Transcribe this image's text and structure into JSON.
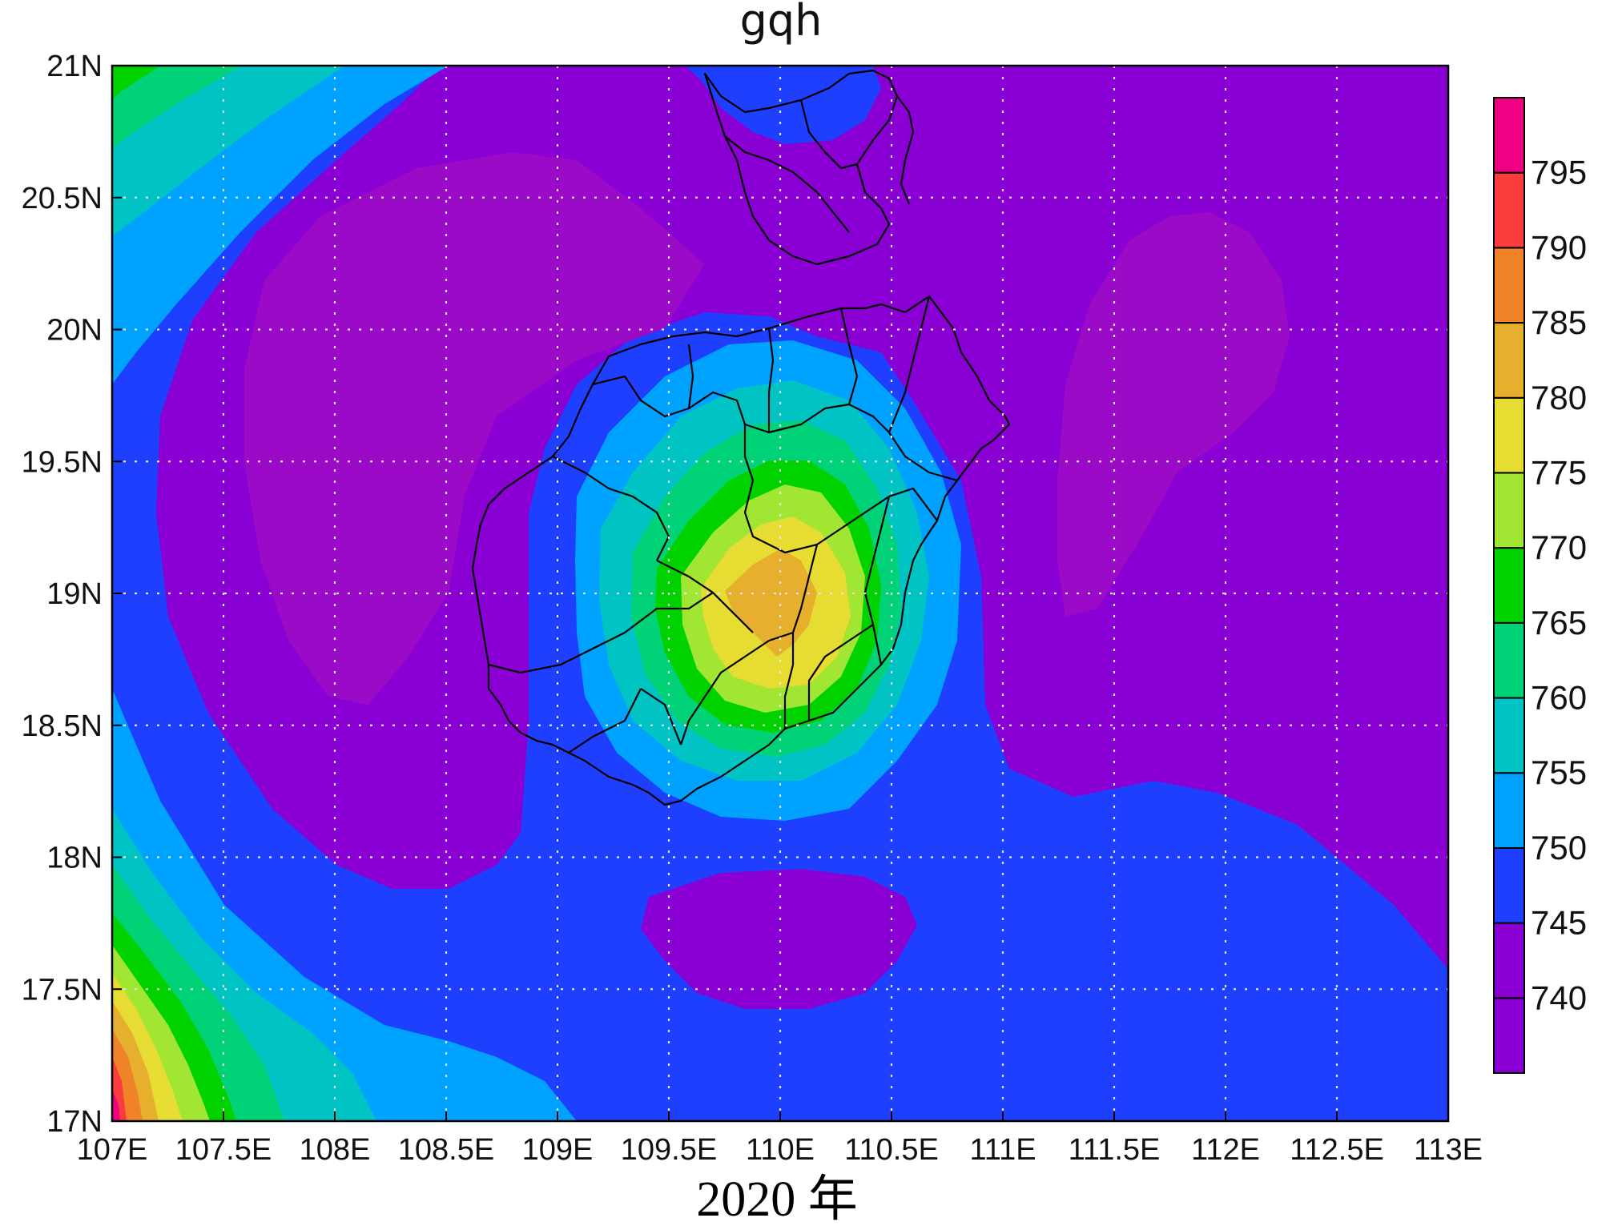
{
  "title": "gqh",
  "caption": "2020 年",
  "map": {
    "lon_range": [
      107,
      113
    ],
    "lat_range": [
      17,
      21
    ],
    "lon_ticks": [
      "107E",
      "107.5E",
      "108E",
      "108.5E",
      "109E",
      "109.5E",
      "110E",
      "110.5E",
      "111E",
      "111.5E",
      "112E",
      "112.5E",
      "113E"
    ],
    "lat_ticks": [
      "17N",
      "17.5N",
      "18N",
      "18.5N",
      "19N",
      "19.5N",
      "20N",
      "20.5N",
      "21N"
    ],
    "grid": "dotted",
    "colors": {
      "background_low": "#8a00d4",
      "c745": "#1f3fff",
      "c750": "#00a2ff",
      "c755": "#00c4c4",
      "c760": "#00d278",
      "c765": "#00d200",
      "c770": "#a0e632",
      "c775": "#e6dc32",
      "c780": "#e6af2d",
      "c785": "#f08228",
      "c790": "#fa3c3c",
      "c795": "#f00082"
    }
  },
  "colorbar": {
    "labels": [
      "740",
      "745",
      "750",
      "755",
      "760",
      "765",
      "770",
      "775",
      "780",
      "785",
      "790",
      "795"
    ],
    "colors": [
      "#8a00d4",
      "#1f3fff",
      "#00a2ff",
      "#00c4c4",
      "#00d278",
      "#00d200",
      "#a0e632",
      "#e6dc32",
      "#e6af2d",
      "#f08228",
      "#fa3c3c",
      "#f00082"
    ]
  }
}
